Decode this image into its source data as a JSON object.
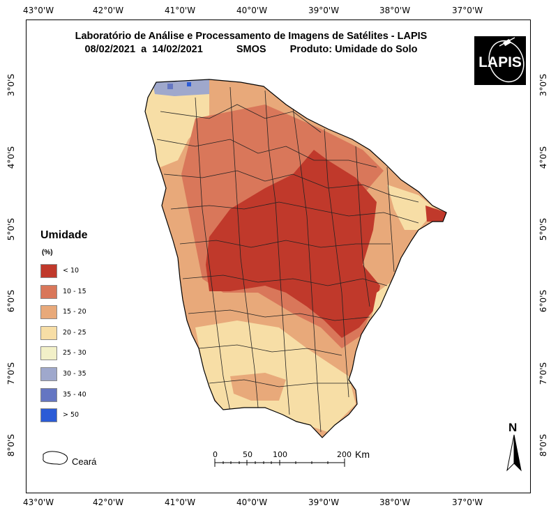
{
  "title": {
    "line1": "Laboratório de Análise e Processamento de Imagens de Satélites - LAPIS",
    "line2_date": "08/02/2021  a  14/02/2021",
    "line2_sensor": "SMOS",
    "line2_product": "Produto: Umidade do Solo"
  },
  "logo": {
    "text": "LAPIS"
  },
  "longitude_labels": [
    "43°0'W",
    "42°0'W",
    "41°0'W",
    "40°0'W",
    "39°0'W",
    "38°0'W",
    "37°0'W"
  ],
  "latitude_labels": [
    "3°0'S",
    "4°0'S",
    "5°0'S",
    "6°0'S",
    "7°0'S",
    "8°0'S"
  ],
  "legend": {
    "title": "Umidade",
    "unit": "(%)",
    "classes": [
      {
        "label": "< 10",
        "color": "#c0392b"
      },
      {
        "label": "10 - 15",
        "color": "#d9775a"
      },
      {
        "label": "15 - 20",
        "color": "#e8a97a"
      },
      {
        "label": "20 - 25",
        "color": "#f7dea6"
      },
      {
        "label": "25 - 30",
        "color": "#f2f0c8"
      },
      {
        "label": "30 - 35",
        "color": "#9fa8cc"
      },
      {
        "label": "35 - 40",
        "color": "#6576c2"
      },
      {
        "label": "> 50",
        "color": "#2b5bd6"
      }
    ]
  },
  "boundary_label": "Ceará",
  "scale_bar": {
    "ticks": [
      "0",
      "50",
      "100",
      "200"
    ],
    "unit": "Km"
  },
  "north_arrow": {
    "letter": "N"
  }
}
